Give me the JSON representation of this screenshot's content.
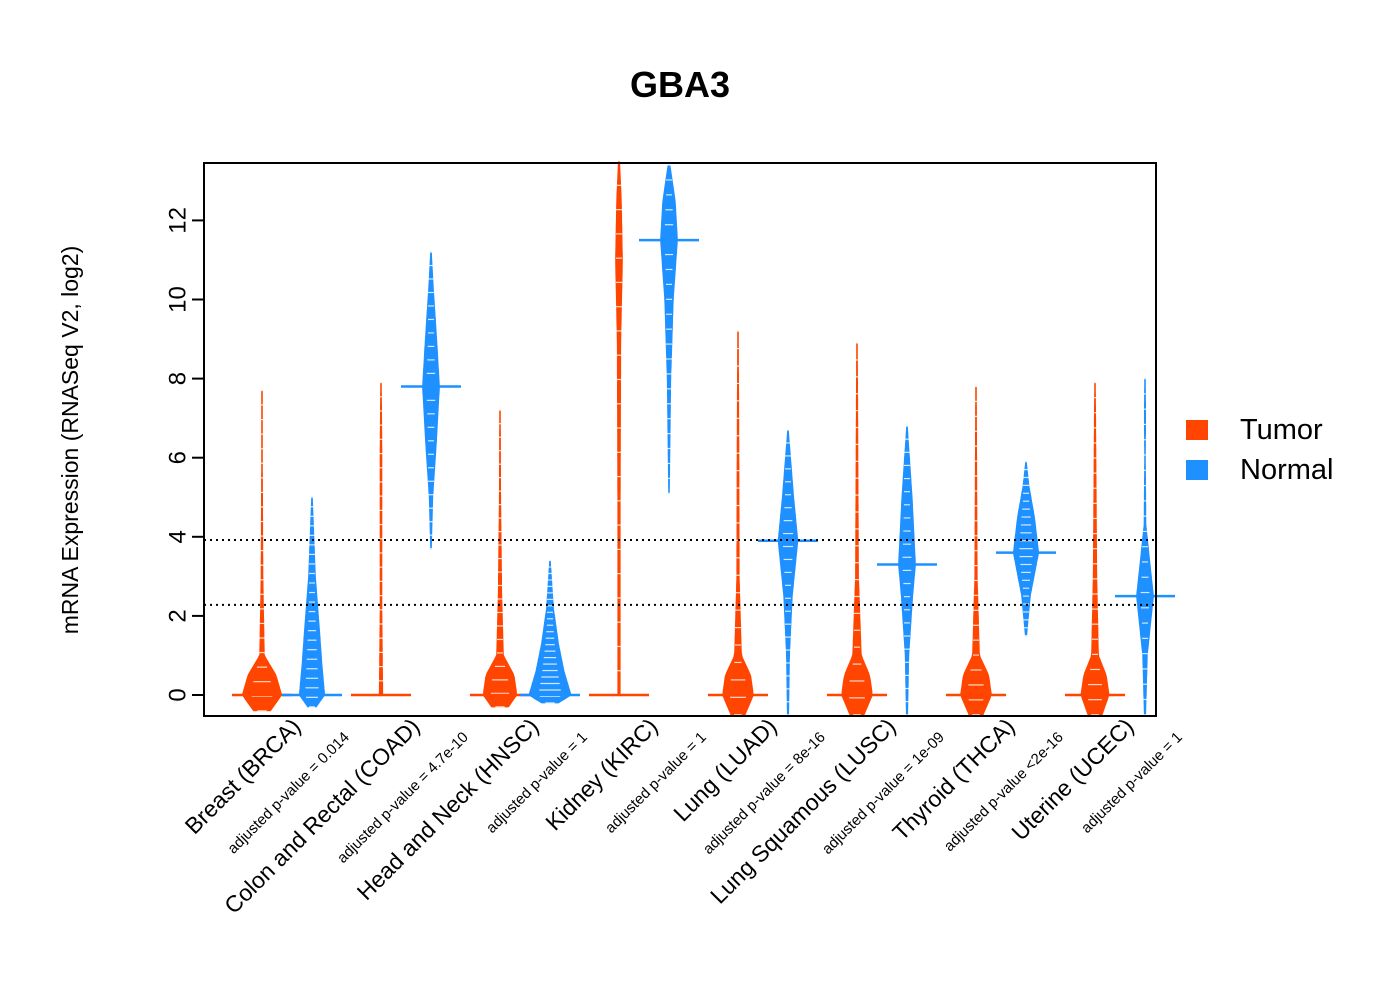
{
  "chart_data": {
    "type": "beanplot",
    "title": "GBA3",
    "ylabel": "mRNA Expression (RNASeq V2, log2)",
    "xlabel": "",
    "ylim": [
      -0.5,
      13.5
    ],
    "yticks": [
      0,
      2,
      4,
      6,
      8,
      10,
      12
    ],
    "reference_lines": [
      2.28,
      3.92
    ],
    "legend": {
      "position": "right",
      "entries": [
        {
          "label": "Tumor",
          "color": "#FF4500"
        },
        {
          "label": "Normal",
          "color": "#1E90FF"
        }
      ]
    },
    "categories": [
      {
        "label": "Breast (BRCA)",
        "pvalue": "adjusted p-value = 0.014",
        "tumor": {
          "min": -0.4,
          "max": 7.7,
          "median": 0.0,
          "mass": [
            [
              -0.4,
              0.3
            ],
            [
              0,
              0.7
            ],
            [
              0.5,
              0.5
            ],
            [
              1,
              0.08
            ],
            [
              3,
              0.03
            ],
            [
              6,
              0.01
            ]
          ]
        },
        "normal": {
          "min": -0.3,
          "max": 5.0,
          "median": 0.0,
          "mass": [
            [
              -0.3,
              0.15
            ],
            [
              0,
              0.45
            ],
            [
              0.8,
              0.35
            ],
            [
              1.8,
              0.25
            ],
            [
              3,
              0.12
            ],
            [
              4.3,
              0.05
            ],
            [
              5,
              0.01
            ]
          ]
        }
      },
      {
        "label": "Colon and Rectal (COAD)",
        "pvalue": "adjusted p-value = 4.7e-10",
        "tumor": {
          "min": 0,
          "max": 7.9,
          "median": 0.0,
          "mass": [
            [
              0,
              0.06
            ],
            [
              2,
              0.03
            ],
            [
              4,
              0.03
            ],
            [
              6,
              0.03
            ],
            [
              7.9,
              0.01
            ]
          ]
        },
        "normal": {
          "min": 3.7,
          "max": 11.2,
          "median": 7.8,
          "mass": [
            [
              3.7,
              0.01
            ],
            [
              5,
              0.06
            ],
            [
              6.5,
              0.2
            ],
            [
              7.8,
              0.3
            ],
            [
              9,
              0.2
            ],
            [
              10.3,
              0.08
            ],
            [
              11.2,
              0.01
            ]
          ]
        }
      },
      {
        "label": "Head and Neck (HNSC)",
        "pvalue": "adjusted p-value = 1",
        "tumor": {
          "min": -0.3,
          "max": 7.2,
          "median": 0.0,
          "mass": [
            [
              -0.3,
              0.3
            ],
            [
              0,
              0.6
            ],
            [
              0.5,
              0.5
            ],
            [
              1,
              0.12
            ],
            [
              2.5,
              0.06
            ],
            [
              5,
              0.02
            ],
            [
              7.2,
              0.01
            ]
          ]
        },
        "normal": {
          "min": -0.2,
          "max": 3.4,
          "median": 0.0,
          "mass": [
            [
              -0.2,
              0.3
            ],
            [
              0,
              0.75
            ],
            [
              0.6,
              0.5
            ],
            [
              1.3,
              0.3
            ],
            [
              2.2,
              0.12
            ],
            [
              3.4,
              0.01
            ]
          ]
        }
      },
      {
        "label": "Kidney (KIRC)",
        "pvalue": "adjusted p-value = 1",
        "tumor": {
          "min": 0,
          "max": 13.5,
          "median": 0.0,
          "mass": [
            [
              0,
              0.04
            ],
            [
              5,
              0.04
            ],
            [
              9,
              0.06
            ],
            [
              11,
              0.12
            ],
            [
              12.5,
              0.08
            ],
            [
              13.5,
              0.02
            ]
          ]
        },
        "normal": {
          "min": 5.1,
          "max": 13.4,
          "median": 11.5,
          "mass": [
            [
              5.1,
              0.01
            ],
            [
              8,
              0.06
            ],
            [
              10,
              0.15
            ],
            [
              11.5,
              0.3
            ],
            [
              12.5,
              0.22
            ],
            [
              13.4,
              0.03
            ]
          ]
        }
      },
      {
        "label": "Lung (LUAD)",
        "pvalue": "adjusted p-value = 8e-16",
        "tumor": {
          "min": -0.5,
          "max": 9.2,
          "median": 0.0,
          "mass": [
            [
              -0.5,
              0.25
            ],
            [
              0,
              0.55
            ],
            [
              0.5,
              0.45
            ],
            [
              1,
              0.12
            ],
            [
              3,
              0.04
            ],
            [
              6,
              0.03
            ],
            [
              9.2,
              0.01
            ]
          ]
        },
        "normal": {
          "min": -0.5,
          "max": 6.7,
          "median": 3.9,
          "mass": [
            [
              -0.5,
              0.02
            ],
            [
              1,
              0.05
            ],
            [
              2.5,
              0.15
            ],
            [
              3.9,
              0.35
            ],
            [
              5,
              0.2
            ],
            [
              6.7,
              0.01
            ]
          ]
        }
      },
      {
        "label": "Lung Squamous (LUSC)",
        "pvalue": "adjusted p-value = 1e-09",
        "tumor": {
          "min": -0.5,
          "max": 8.9,
          "median": 0.0,
          "mass": [
            [
              -0.5,
              0.25
            ],
            [
              0,
              0.55
            ],
            [
              0.5,
              0.45
            ],
            [
              1,
              0.15
            ],
            [
              3,
              0.05
            ],
            [
              6,
              0.03
            ],
            [
              8.9,
              0.01
            ]
          ]
        },
        "normal": {
          "min": -0.5,
          "max": 6.8,
          "median": 3.3,
          "mass": [
            [
              -0.5,
              0.02
            ],
            [
              1,
              0.06
            ],
            [
              2.5,
              0.2
            ],
            [
              3.3,
              0.3
            ],
            [
              5,
              0.18
            ],
            [
              6.8,
              0.01
            ]
          ]
        }
      },
      {
        "label": "Thyroid (THCA)",
        "pvalue": "adjusted p-value <2e-16",
        "tumor": {
          "min": -0.5,
          "max": 7.8,
          "median": 0.0,
          "mass": [
            [
              -0.5,
              0.25
            ],
            [
              0,
              0.55
            ],
            [
              0.5,
              0.45
            ],
            [
              1,
              0.12
            ],
            [
              3,
              0.04
            ],
            [
              6,
              0.02
            ],
            [
              7.8,
              0.01
            ]
          ]
        },
        "normal": {
          "min": 1.5,
          "max": 5.9,
          "median": 3.6,
          "mass": [
            [
              1.5,
              0.02
            ],
            [
              2.5,
              0.15
            ],
            [
              3.6,
              0.45
            ],
            [
              4.5,
              0.3
            ],
            [
              5.3,
              0.1
            ],
            [
              5.9,
              0.01
            ]
          ]
        }
      },
      {
        "label": "Uterine (UCEC)",
        "pvalue": "adjusted p-value = 1",
        "tumor": {
          "min": -0.5,
          "max": 7.9,
          "median": 0.0,
          "mass": [
            [
              -0.5,
              0.25
            ],
            [
              0,
              0.5
            ],
            [
              0.5,
              0.4
            ],
            [
              1,
              0.12
            ],
            [
              3,
              0.06
            ],
            [
              5,
              0.04
            ],
            [
              7.9,
              0.01
            ]
          ]
        },
        "normal": {
          "min": -0.5,
          "max": 8.0,
          "median": 2.5,
          "mass": [
            [
              -0.5,
              0.02
            ],
            [
              1,
              0.08
            ],
            [
              2.5,
              0.3
            ],
            [
              3.5,
              0.15
            ],
            [
              4.3,
              0.03
            ],
            [
              6,
              0.01
            ],
            [
              7,
              0.02
            ],
            [
              8,
              0.01
            ]
          ]
        }
      }
    ]
  }
}
